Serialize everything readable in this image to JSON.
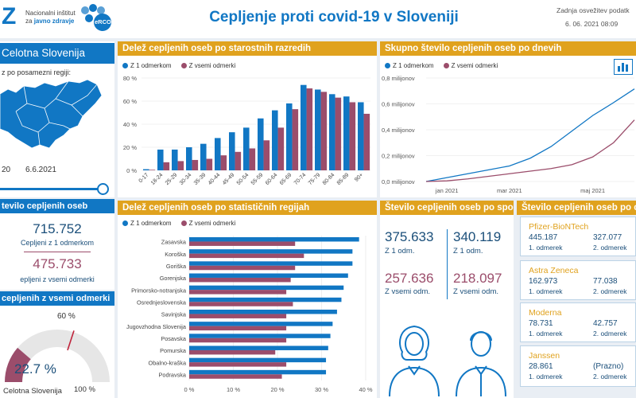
{
  "header": {
    "logo_mark": "Z",
    "institute_line1": "Nacionalni inštitut",
    "institute_line2_prefix": "za",
    "institute_line2_strong": "javno zdravje",
    "erco_label": "eRCO",
    "title": "Cepljenje proti covid-19 v Sloveniji",
    "update_label": "Zadnja osvežitev podatk",
    "update_value": "6. 06. 2021 08:09"
  },
  "region": {
    "title": "Celotna Slovenija",
    "hint": "z po posamezni regiji:",
    "date_start": "20",
    "date_end": "6.6.2021"
  },
  "totals": {
    "title": "tevilo cepljenih oseb",
    "first_value": "715.752",
    "first_label": "Cepljeni z 1 odmerkom",
    "full_value": "475.733",
    "full_label": "epljeni z vsemi odmerki"
  },
  "gauge": {
    "title": "cepljenih z vsemi odmerki",
    "value_label": "22.7 %",
    "value": 22.7,
    "target_label": "60 %",
    "target": 60,
    "max_label": "100 %",
    "region_label": "Celotna Slovenija"
  },
  "colors": {
    "series1": "#1177c4",
    "series2": "#9b4d6b",
    "accent": "#e0a21e"
  },
  "legend": {
    "s1": "Z 1 odmerkom",
    "s2": "Z vsemi odmerki",
    "s1_daily": "Z 1 odmerkom",
    "s2_daily": "Z vsemi odmerki"
  },
  "age_chart": {
    "title": "Delež cepljenih oseb po starostnih razredih",
    "yticks": [
      "0 %",
      "20 %",
      "40 %",
      "60 %",
      "80 %"
    ]
  },
  "daily_chart": {
    "title": "Skupno število cepljenih oseb po dnevih",
    "yticks": [
      "0,0 milijonov",
      "0,2 milijonov",
      "0,4 milijonov",
      "0,6 milijonov",
      "0,8 milijonov"
    ],
    "xticks": [
      "jan 2021",
      "mar 2021",
      "maj 2021"
    ]
  },
  "region_chart": {
    "title": "Delež cepljenih oseb po statističnih regijah",
    "xticks": [
      "0 %",
      "10 %",
      "20 %",
      "30 %",
      "40 %"
    ]
  },
  "sex": {
    "title": "Število cepljenih oseb po spolu",
    "female_first": "375.633",
    "female_first_label": "Z 1 odm.",
    "female_full": "257.636",
    "female_full_label": "Z vsemi odm.",
    "male_first": "340.119",
    "male_first_label": "Z 1 odm.",
    "male_full": "218.097",
    "male_full_label": "Z vsemi odm."
  },
  "vaccines": {
    "title": "Število cepljenih oseb po cepivu",
    "items": [
      {
        "name": "Pfizer-BioNTech",
        "v1": "445.187",
        "l1": "1. odmerek",
        "v2": "327.077",
        "l2": "2. odmerek"
      },
      {
        "name": "Astra Zeneca",
        "v1": "162.973",
        "l1": "1. odmerek",
        "v2": "77.038",
        "l2": "2. odmerek"
      },
      {
        "name": "Moderna",
        "v1": "78.731",
        "l1": "1. odmerek",
        "v2": "42.757",
        "l2": "2. odmerek"
      },
      {
        "name": "Janssen",
        "v1": "28.861",
        "l1": "1. odmerek",
        "v2": "(Prazno)",
        "l2": "2. odmerek"
      }
    ]
  },
  "chart_data": [
    {
      "type": "bar",
      "title": "Delež cepljenih oseb po starostnih razredih",
      "categories": [
        "0-17",
        "18-24",
        "25-29",
        "30-34",
        "35-39",
        "40-44",
        "45-49",
        "50-54",
        "55-59",
        "60-64",
        "65-69",
        "70-74",
        "75-79",
        "80-84",
        "85-89",
        "90+"
      ],
      "series": [
        {
          "name": "Z 1 odmerkom",
          "values": [
            1,
            18,
            18,
            20,
            23,
            28,
            33,
            37,
            45,
            52,
            58,
            74,
            70,
            66,
            64,
            59
          ]
        },
        {
          "name": "Z vsemi odmerki",
          "values": [
            0.5,
            7,
            8,
            9,
            10,
            13,
            16,
            19,
            26,
            37,
            53,
            71,
            68,
            63,
            59,
            49
          ]
        }
      ],
      "ylim": [
        0,
        80
      ]
    },
    {
      "type": "line",
      "title": "Skupno število cepljenih oseb po dnevih",
      "x": [
        "2020-12-27",
        "2021-01-15",
        "2021-02-01",
        "2021-02-15",
        "2021-03-01",
        "2021-03-15",
        "2021-04-01",
        "2021-04-15",
        "2021-05-01",
        "2021-05-15",
        "2021-06-06"
      ],
      "series": [
        {
          "name": "Z 1 odmerkom",
          "values": [
            0,
            0.03,
            0.06,
            0.09,
            0.12,
            0.18,
            0.27,
            0.39,
            0.51,
            0.61,
            0.716
          ]
        },
        {
          "name": "Z vsemi odmerki",
          "values": [
            0,
            0.005,
            0.02,
            0.04,
            0.06,
            0.08,
            0.1,
            0.13,
            0.19,
            0.3,
            0.476
          ]
        }
      ],
      "ylim": [
        0,
        0.8
      ]
    },
    {
      "type": "bar",
      "orientation": "horizontal",
      "title": "Delež cepljenih oseb po statističnih regijah",
      "categories": [
        "Zasavska",
        "Koroška",
        "Goriška",
        "Gorenjska",
        "Primorsko-notranjska",
        "Osrednjeslovenska",
        "Savinjska",
        "Jugovzhodna Slovenija",
        "Posavska",
        "Pomurska",
        "Obalno-kraška",
        "Podravska"
      ],
      "series": [
        {
          "name": "Z 1 odmerkom",
          "values": [
            38.5,
            37,
            37,
            36,
            35,
            34.5,
            33.5,
            32.5,
            32,
            31.5,
            31,
            31
          ]
        },
        {
          "name": "Z vsemi odmerki",
          "values": [
            24,
            26,
            24,
            23,
            22,
            23.5,
            22,
            22,
            22,
            19.5,
            22,
            21
          ]
        }
      ],
      "xlim": [
        0,
        40
      ]
    }
  ]
}
